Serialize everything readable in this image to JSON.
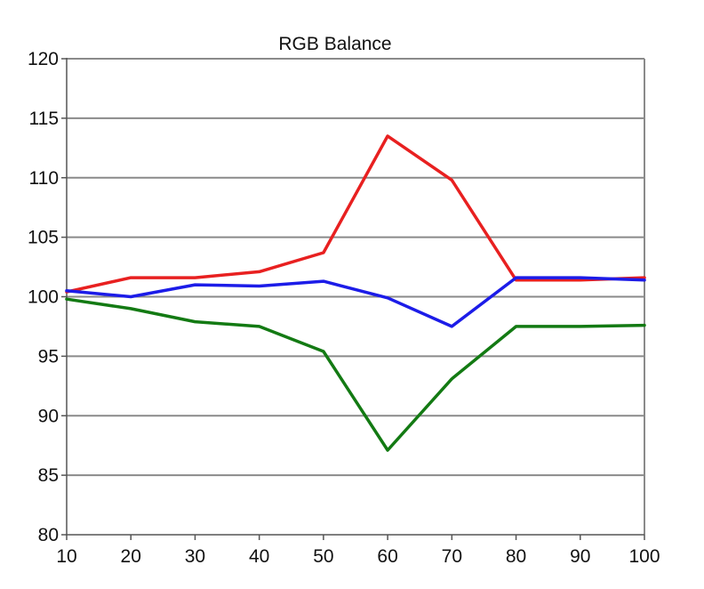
{
  "chart_data": {
    "type": "line",
    "title": "RGB Balance",
    "xlabel": "",
    "ylabel": "",
    "x": [
      10,
      20,
      30,
      40,
      50,
      60,
      70,
      80,
      90,
      100
    ],
    "xlim": [
      10,
      100
    ],
    "ylim": [
      80,
      120
    ],
    "x_ticks": [
      10,
      20,
      30,
      40,
      50,
      60,
      70,
      80,
      90,
      100
    ],
    "y_ticks": [
      80,
      85,
      90,
      95,
      100,
      105,
      110,
      115,
      120
    ],
    "grid": "horizontal",
    "legend": "none",
    "series": [
      {
        "color": "#e82020",
        "values": [
          100.4,
          101.6,
          101.6,
          102.1,
          103.7,
          113.5,
          109.8,
          101.4,
          101.4,
          101.6
        ]
      },
      {
        "color": "#1c1ce8",
        "values": [
          100.5,
          100.0,
          101.0,
          100.9,
          101.3,
          99.9,
          97.5,
          101.6,
          101.6,
          101.4
        ]
      },
      {
        "color": "#137a13",
        "values": [
          99.8,
          99.0,
          97.9,
          97.5,
          95.4,
          87.1,
          93.1,
          97.5,
          97.5,
          97.6
        ]
      }
    ]
  }
}
